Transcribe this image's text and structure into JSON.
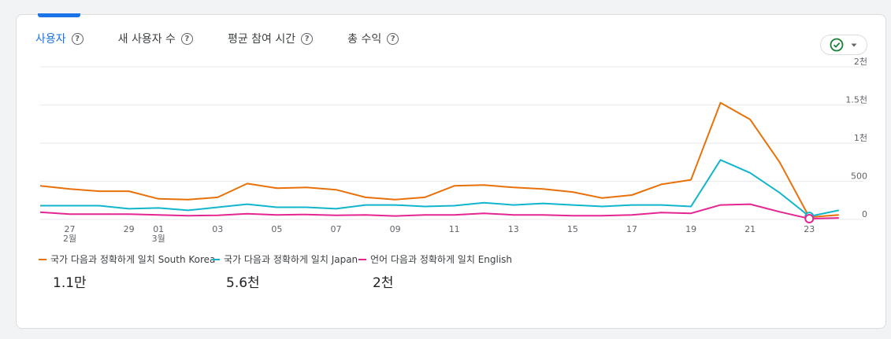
{
  "tabs": [
    {
      "label": "사용자",
      "active": true
    },
    {
      "label": "새 사용자 수",
      "active": false
    },
    {
      "label": "평균 참여 시간",
      "active": false
    },
    {
      "label": "총 수익",
      "active": false
    }
  ],
  "help_glyph": "?",
  "icons": {
    "status": "check-circle-icon",
    "dropdown": "caret-down-icon"
  },
  "colors": {
    "accent": "#1a73e8",
    "status_check": "#188038"
  },
  "legend": [
    {
      "label": "국가 다음과 정확하게 일치 South Korea",
      "total": "1.1만",
      "color": "#e8710a"
    },
    {
      "label": "국가 다음과 정확하게 일치 Japan",
      "total": "5.6천",
      "color": "#12b5cb"
    },
    {
      "label": "언어 다음과 정확하게 일치 English",
      "total": "2천",
      "color": "#e52592"
    }
  ],
  "chart_data": {
    "type": "line",
    "x": [
      "2/26",
      "2/27",
      "2/28",
      "2/29",
      "3/01",
      "3/02",
      "3/03",
      "3/04",
      "3/05",
      "3/06",
      "3/07",
      "3/08",
      "3/09",
      "3/10",
      "3/11",
      "3/12",
      "3/13",
      "3/14",
      "3/15",
      "3/16",
      "3/17",
      "3/18",
      "3/19",
      "3/20",
      "3/21",
      "3/22",
      "3/23",
      "3/24"
    ],
    "x_tick_labels": [
      {
        "x": "2/27",
        "label": "27",
        "sub": "2월"
      },
      {
        "x": "2/29",
        "label": "29",
        "sub": ""
      },
      {
        "x": "3/01",
        "label": "01",
        "sub": "3월"
      },
      {
        "x": "3/03",
        "label": "03",
        "sub": ""
      },
      {
        "x": "3/05",
        "label": "05",
        "sub": ""
      },
      {
        "x": "3/07",
        "label": "07",
        "sub": ""
      },
      {
        "x": "3/09",
        "label": "09",
        "sub": ""
      },
      {
        "x": "3/11",
        "label": "11",
        "sub": ""
      },
      {
        "x": "3/13",
        "label": "13",
        "sub": ""
      },
      {
        "x": "3/15",
        "label": "15",
        "sub": ""
      },
      {
        "x": "3/17",
        "label": "17",
        "sub": ""
      },
      {
        "x": "3/19",
        "label": "19",
        "sub": ""
      },
      {
        "x": "3/21",
        "label": "21",
        "sub": ""
      },
      {
        "x": "3/23",
        "label": "23",
        "sub": ""
      }
    ],
    "y_ticks": [
      {
        "value": 0,
        "label": "0"
      },
      {
        "value": 500,
        "label": "500"
      },
      {
        "value": 1000,
        "label": "1천"
      },
      {
        "value": 1500,
        "label": "1.5천"
      },
      {
        "value": 2000,
        "label": "2천"
      }
    ],
    "ylim": [
      0,
      2000
    ],
    "grid": true,
    "series": [
      {
        "name": "국가 다음과 정확하게 일치 South Korea",
        "color": "#e8710a",
        "values": [
          440,
          400,
          370,
          370,
          270,
          260,
          290,
          470,
          410,
          420,
          390,
          290,
          260,
          290,
          440,
          450,
          420,
          400,
          360,
          280,
          320,
          460,
          520,
          1530,
          1310,
          750,
          30,
          60
        ]
      },
      {
        "name": "국가 다음과 정확하게 일치 Japan",
        "color": "#12b5cb",
        "values": [
          180,
          180,
          180,
          140,
          150,
          120,
          160,
          200,
          160,
          160,
          140,
          190,
          190,
          170,
          180,
          220,
          190,
          210,
          190,
          170,
          190,
          190,
          170,
          780,
          610,
          350,
          40,
          120
        ]
      },
      {
        "name": "언어 다음과 정확하게 일치 English",
        "color": "#e52592",
        "values": [
          95,
          70,
          70,
          70,
          60,
          50,
          55,
          75,
          60,
          65,
          55,
          60,
          45,
          60,
          60,
          80,
          60,
          60,
          50,
          50,
          60,
          90,
          80,
          190,
          200,
          100,
          10,
          20
        ]
      }
    ]
  }
}
